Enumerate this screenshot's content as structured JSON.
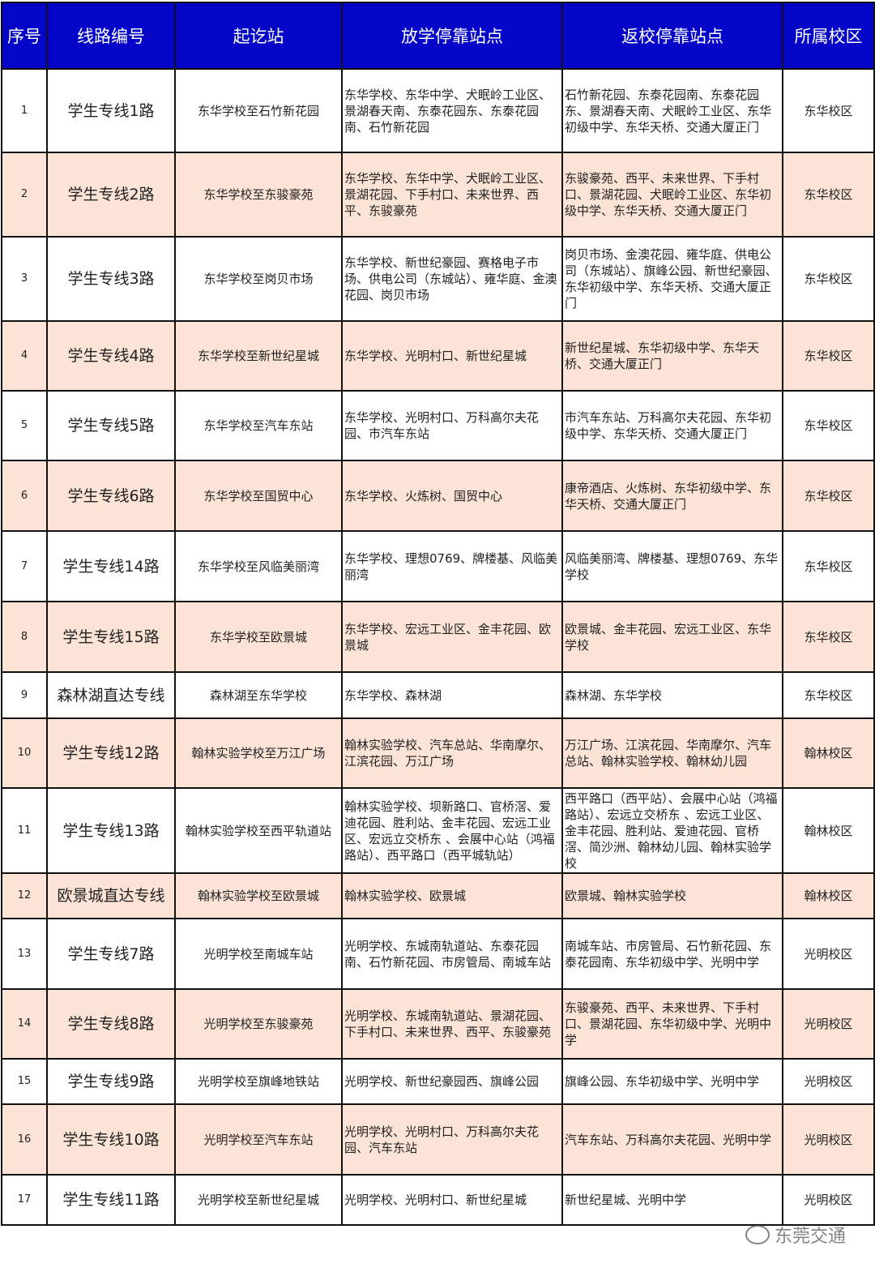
{
  "header": [
    "序号",
    "线路编号",
    "起讫站",
    "放学停靠站点",
    "返校停靠站点",
    "所属校区"
  ],
  "rows": [
    [
      "1",
      "学生专线1路",
      "东华学校至石竹新花园",
      "东华学校、东华中学、犬眠岭工业区、景湖春天南、东泰花园东、东泰花园南、石竹新花园",
      "石竹新花园、东泰花园南、东泰花园东、景湖春天南、犬眠岭工业区、东华初级中学、东华天桥、交通大厦正门",
      "东华校区"
    ],
    [
      "2",
      "学生专线2路",
      "东华学校至东骏豪苑",
      "东华学校、东华中学、犬眠岭工业区、景湖花园、下手村口、未来世界、西平、东骏豪苑",
      "东骏豪苑、西平、未来世界、下手村口、景湖花园、犬眠岭工业区、东华初级中学、东华天桥、交通大厦正门",
      "东华校区"
    ],
    [
      "3",
      "学生专线3路",
      "东华学校至岗贝市场",
      "东华学校、新世纪豪园、赛格电子市场、供电公司（东城站）、雍华庭、金澳花园、岗贝市场",
      "岗贝市场、金澳花园、雍华庭、供电公司（东城站）、旗峰公园、新世纪豪园、东华初级中学、东华天桥、交通大厦正门",
      "东华校区"
    ],
    [
      "4",
      "学生专线4路",
      "东华学校至新世纪星城",
      "东华学校、光明村口、新世纪星城",
      "新世纪星城、东华初级中学、东华天桥、交通大厦正门",
      "东华校区"
    ],
    [
      "5",
      "学生专线5路",
      "东华学校至汽车东站",
      "东华学校、光明村口、万科高尔夫花园、市汽车东站",
      "市汽车东站、万科高尔夫花园、东华初级中学、东华天桥、交通大厦正门",
      "东华校区"
    ],
    [
      "6",
      "学生专线6路",
      "东华学校至国贸中心",
      "东华学校、火炼树、国贸中心",
      "康帝酒店、火炼树、东华初级中学、东华天桥、交通大厦正门",
      "东华校区"
    ],
    [
      "7",
      "学生专线14路",
      "东华学校至风临美丽湾",
      "东华学校、理想0769、牌楼基、风临美丽湾",
      "风临美丽湾、牌楼基、理想0769、东华学校",
      "东华校区"
    ],
    [
      "8",
      "学生专线15路",
      "东华学校至欧景城",
      "东华学校、宏远工业区、金丰花园、欧景城",
      "欧景城、金丰花园、宏远工业区、东华学校",
      "东华校区"
    ],
    [
      "9",
      "森林湖直达专线",
      "森林湖至东华学校",
      "东华学校、森林湖",
      "森林湖、东华学校",
      "东华校区"
    ],
    [
      "10",
      "学生专线12路",
      "翰林实验学校至万江广场",
      "翰林实验学校、汽车总站、华南摩尔、江滨花园、万江广场",
      "万江广场、江滨花园、华南摩尔、汽车总站、翰林实验学校、翰林幼儿园",
      "翰林校区"
    ],
    [
      "11",
      "学生专线13路",
      "翰林实验学校至西平轨道站",
      "翰林实验学校、坝新路口、官桥滘、爱迪花园、胜利站、金丰花园、宏远工业区、宏远立交桥东 、会展中心站（鸿福路站）、西平路口（西平城轨站）",
      "西平路口（西平站）、会展中心站（鸿福路站）、宏远立交桥东 、宏远工业区、金丰花园、胜利站、爱迪花园、官桥滘、简沙洲、翰林幼儿园、翰林实验学校",
      "翰林校区"
    ],
    [
      "12",
      "欧景城直达专线",
      "翰林实验学校至欧景城",
      "翰林实验学校、欧景城",
      "欧景城、翰林实验学校",
      "翰林校区"
    ],
    [
      "13",
      "学生专线7路",
      "光明学校至南城车站",
      "光明学校、东城南轨道站、东泰花园南、石竹新花园、市房管局、南城车站",
      "南城车站、市房管局、石竹新花园、东泰花园南、东华初级中学、光明中学",
      "光明校区"
    ],
    [
      "14",
      "学生专线8路",
      "光明学校至东骏豪苑",
      "光明学校、东城南轨道站、景湖花园、下手村口、未来世界、西平、东骏豪苑",
      "东骏豪苑、西平、未来世界、下手村口、景湖花园、东华初级中学、光明中学",
      "光明校区"
    ],
    [
      "15",
      "学生专线9路",
      "光明学校至旗峰地铁站",
      "光明学校、新世纪豪园西、旗峰公园",
      "旗峰公园、东华初级中学、光明中学",
      "光明校区"
    ],
    [
      "16",
      "学生专线10路",
      "光明学校至汽车东站",
      "光明学校、光明村口、万科高尔夫花园、汽车东站",
      "汽车东站、万科高尔夫花园、光明中学",
      "光明校区"
    ],
    [
      "17",
      "学生专线11路",
      "光明学校至新世纪星城",
      "光明学校、光明村口、新世纪星城",
      "新世纪星城、光明中学",
      "光明校区"
    ]
  ],
  "watermark": "东莞交通"
}
